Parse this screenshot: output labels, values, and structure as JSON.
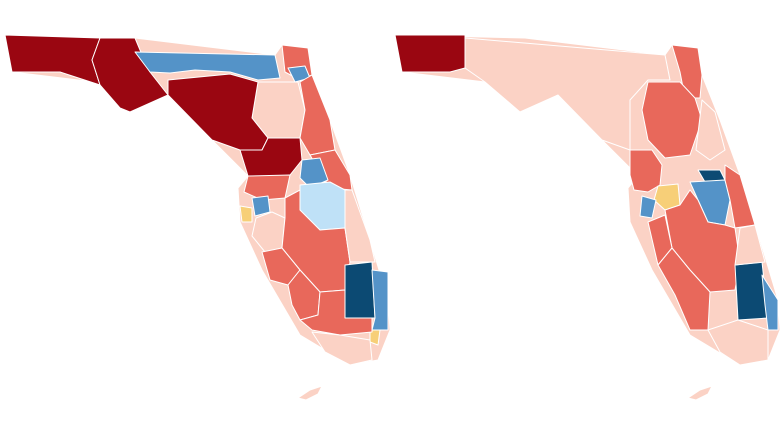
{
  "legend_colors": {
    "safe_r": "#9a0611",
    "likely_r": "#e8685b",
    "lean_r": "#fbd2c5",
    "tossup": "#f7cf78",
    "lean_d": "#bfe1f7",
    "likely_d": "#5493c8",
    "safe_d": "#0c4a73"
  },
  "maps": [
    {
      "name": "left-map",
      "districts": [
        {
          "name": "district-panhandle-west",
          "category": "safe_r"
        },
        {
          "name": "district-panhandle-central",
          "category": "safe_r"
        },
        {
          "name": "district-north-strip",
          "category": "likely_d"
        },
        {
          "name": "district-northeast-border",
          "category": "likely_r"
        },
        {
          "name": "district-jacksonville",
          "category": "likely_d"
        },
        {
          "name": "district-north-central",
          "category": "lean_r"
        },
        {
          "name": "district-big-bend",
          "category": "safe_r"
        },
        {
          "name": "district-northeast-coast",
          "category": "likely_r"
        },
        {
          "name": "district-nature-coast",
          "category": "safe_r"
        },
        {
          "name": "district-volusia",
          "category": "likely_r"
        },
        {
          "name": "district-orlando-north",
          "category": "likely_d"
        },
        {
          "name": "district-orlando-south",
          "category": "lean_d"
        },
        {
          "name": "district-pasco",
          "category": "likely_r"
        },
        {
          "name": "district-tampa",
          "category": "likely_d"
        },
        {
          "name": "district-pinellas",
          "category": "tossup"
        },
        {
          "name": "district-polk",
          "category": "lean_r"
        },
        {
          "name": "district-heartland",
          "category": "likely_r"
        },
        {
          "name": "district-brevard",
          "category": "lean_r"
        },
        {
          "name": "district-sarasota",
          "category": "likely_r"
        },
        {
          "name": "district-fort-myers",
          "category": "likely_r"
        },
        {
          "name": "district-palm-beach",
          "category": "safe_d"
        },
        {
          "name": "district-broward-coast",
          "category": "likely_d"
        },
        {
          "name": "district-miami",
          "category": "tossup"
        },
        {
          "name": "district-collier",
          "category": "likely_r"
        },
        {
          "name": "district-south-tip",
          "category": "lean_r"
        },
        {
          "name": "district-keys",
          "category": "lean_r"
        }
      ]
    },
    {
      "name": "right-map",
      "districts": [
        {
          "name": "district-panhandle-west",
          "category": "safe_r"
        },
        {
          "name": "district-panhandle-rest",
          "category": "lean_r"
        },
        {
          "name": "district-jacksonville",
          "category": "likely_r"
        },
        {
          "name": "district-north-central",
          "category": "likely_r"
        },
        {
          "name": "district-northeast-coast",
          "category": "lean_r"
        },
        {
          "name": "district-nature-coast",
          "category": "likely_r"
        },
        {
          "name": "district-orlando-north",
          "category": "safe_d"
        },
        {
          "name": "district-orlando-central",
          "category": "likely_d"
        },
        {
          "name": "district-brevard",
          "category": "likely_r"
        },
        {
          "name": "district-tampa",
          "category": "tossup"
        },
        {
          "name": "district-pinellas",
          "category": "likely_d"
        },
        {
          "name": "district-heartland",
          "category": "likely_r"
        },
        {
          "name": "district-sarasota",
          "category": "likely_r"
        },
        {
          "name": "district-fort-myers",
          "category": "likely_r"
        },
        {
          "name": "district-palm-beach",
          "category": "safe_d"
        },
        {
          "name": "district-broward-coast",
          "category": "likely_d"
        },
        {
          "name": "district-treasure-coast",
          "category": "lean_r"
        },
        {
          "name": "district-south-tip",
          "category": "lean_r"
        },
        {
          "name": "district-keys",
          "category": "lean_r"
        }
      ]
    }
  ]
}
